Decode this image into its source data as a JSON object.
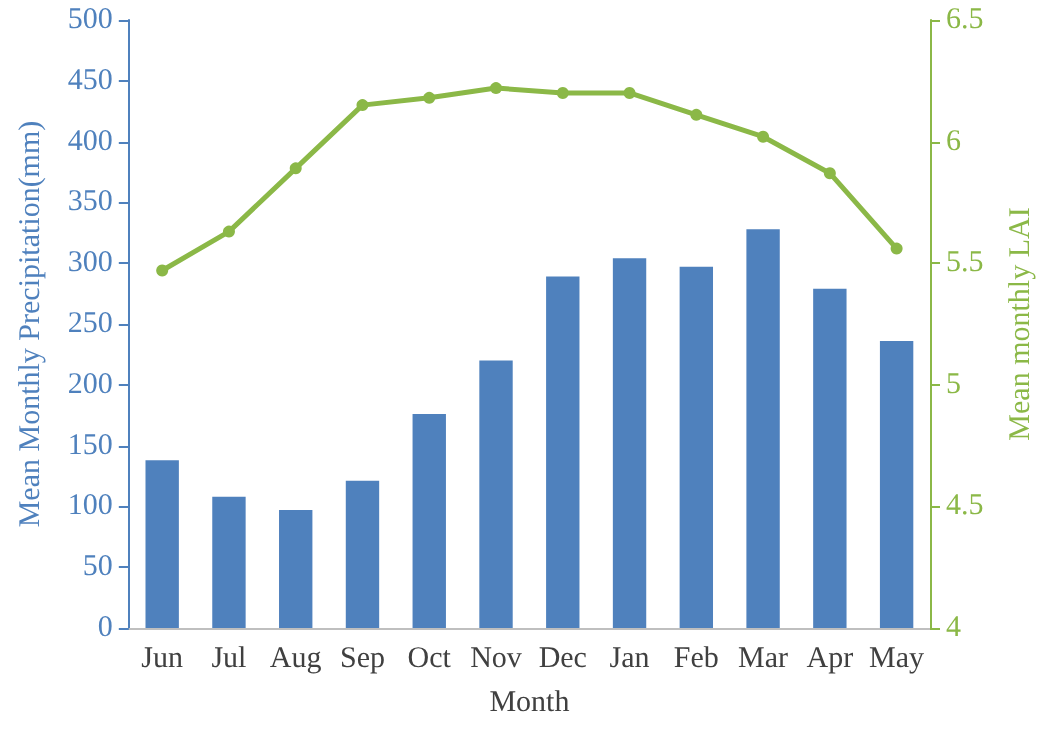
{
  "chart_data": {
    "type": "bar",
    "xlabel": "Month",
    "ylabel": "Mean Monthly Precipitation(mm)",
    "y2label": "Mean monthly LAI",
    "categories": [
      "Jun",
      "Jul",
      "Aug",
      "Sep",
      "Oct",
      "Nov",
      "Dec",
      "Jan",
      "Feb",
      "Mar",
      "Apr",
      "May"
    ],
    "series": [
      {
        "color": "#4f81bd",
        "values": [
          138,
          108,
          97,
          121,
          176,
          220,
          289,
          304,
          297,
          328,
          279,
          236
        ]
      },
      {
        "type": "line",
        "axis": "y2",
        "color": "#8bb847",
        "values": [
          5.47,
          5.63,
          5.89,
          6.15,
          6.18,
          6.22,
          6.2,
          6.2,
          6.11,
          6.02,
          5.87,
          5.56
        ]
      }
    ],
    "ylim": [
      0,
      500
    ],
    "yticks": [
      0,
      50,
      100,
      150,
      200,
      250,
      300,
      350,
      400,
      450,
      500
    ],
    "y2lim": [
      4,
      6.5
    ],
    "y2ticks": [
      4,
      4.5,
      5,
      5.5,
      6,
      6.5
    ],
    "grid": false,
    "marker": "circle"
  }
}
